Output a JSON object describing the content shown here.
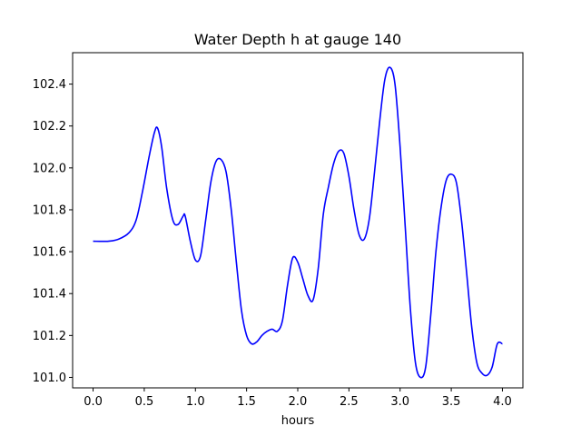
{
  "chart_data": {
    "type": "line",
    "title": "Water Depth h at gauge 140",
    "xlabel": "hours",
    "ylabel": "",
    "xlim": [
      -0.2,
      4.2
    ],
    "ylim": [
      100.95,
      102.55
    ],
    "xticks": [
      0.0,
      0.5,
      1.0,
      1.5,
      2.0,
      2.5,
      3.0,
      3.5,
      4.0
    ],
    "xtick_labels": [
      "0.0",
      "0.5",
      "1.0",
      "1.5",
      "2.0",
      "2.5",
      "3.0",
      "3.5",
      "4.0"
    ],
    "yticks": [
      101.0,
      101.2,
      101.4,
      101.6,
      101.8,
      102.0,
      102.2,
      102.4
    ],
    "ytick_labels": [
      "101.0",
      "101.2",
      "101.4",
      "101.6",
      "101.8",
      "102.0",
      "102.2",
      "102.4"
    ],
    "grid": false,
    "series": [
      {
        "color": "#0000ff",
        "x": [
          0.0,
          0.15,
          0.25,
          0.35,
          0.42,
          0.48,
          0.55,
          0.6,
          0.63,
          0.67,
          0.72,
          0.78,
          0.83,
          0.88,
          0.9,
          0.95,
          1.0,
          1.05,
          1.1,
          1.15,
          1.2,
          1.25,
          1.3,
          1.35,
          1.4,
          1.45,
          1.5,
          1.55,
          1.6,
          1.65,
          1.7,
          1.75,
          1.8,
          1.85,
          1.9,
          1.95,
          2.0,
          2.05,
          2.1,
          2.15,
          2.2,
          2.25,
          2.3,
          2.35,
          2.4,
          2.45,
          2.5,
          2.55,
          2.6,
          2.65,
          2.7,
          2.75,
          2.8,
          2.85,
          2.9,
          2.95,
          3.0,
          3.05,
          3.1,
          3.15,
          3.2,
          3.25,
          3.3,
          3.35,
          3.4,
          3.45,
          3.5,
          3.55,
          3.6,
          3.65,
          3.7,
          3.75,
          3.8,
          3.85,
          3.9,
          3.95,
          4.0
        ],
        "y": [
          101.65,
          101.65,
          101.66,
          101.69,
          101.75,
          101.88,
          102.06,
          102.17,
          102.19,
          102.1,
          101.9,
          101.75,
          101.73,
          101.77,
          101.77,
          101.65,
          101.56,
          101.58,
          101.75,
          101.93,
          102.03,
          102.04,
          101.98,
          101.8,
          101.55,
          101.32,
          101.2,
          101.16,
          101.17,
          101.2,
          101.22,
          101.23,
          101.22,
          101.27,
          101.44,
          101.57,
          101.55,
          101.47,
          101.39,
          101.37,
          101.52,
          101.78,
          101.91,
          102.02,
          102.08,
          102.07,
          101.96,
          101.8,
          101.68,
          101.66,
          101.76,
          101.98,
          102.22,
          102.42,
          102.48,
          102.4,
          102.1,
          101.72,
          101.33,
          101.07,
          101.0,
          101.05,
          101.3,
          101.6,
          101.81,
          101.94,
          101.97,
          101.93,
          101.75,
          101.5,
          101.24,
          101.07,
          101.02,
          101.01,
          101.05,
          101.16,
          101.16
        ]
      }
    ]
  }
}
